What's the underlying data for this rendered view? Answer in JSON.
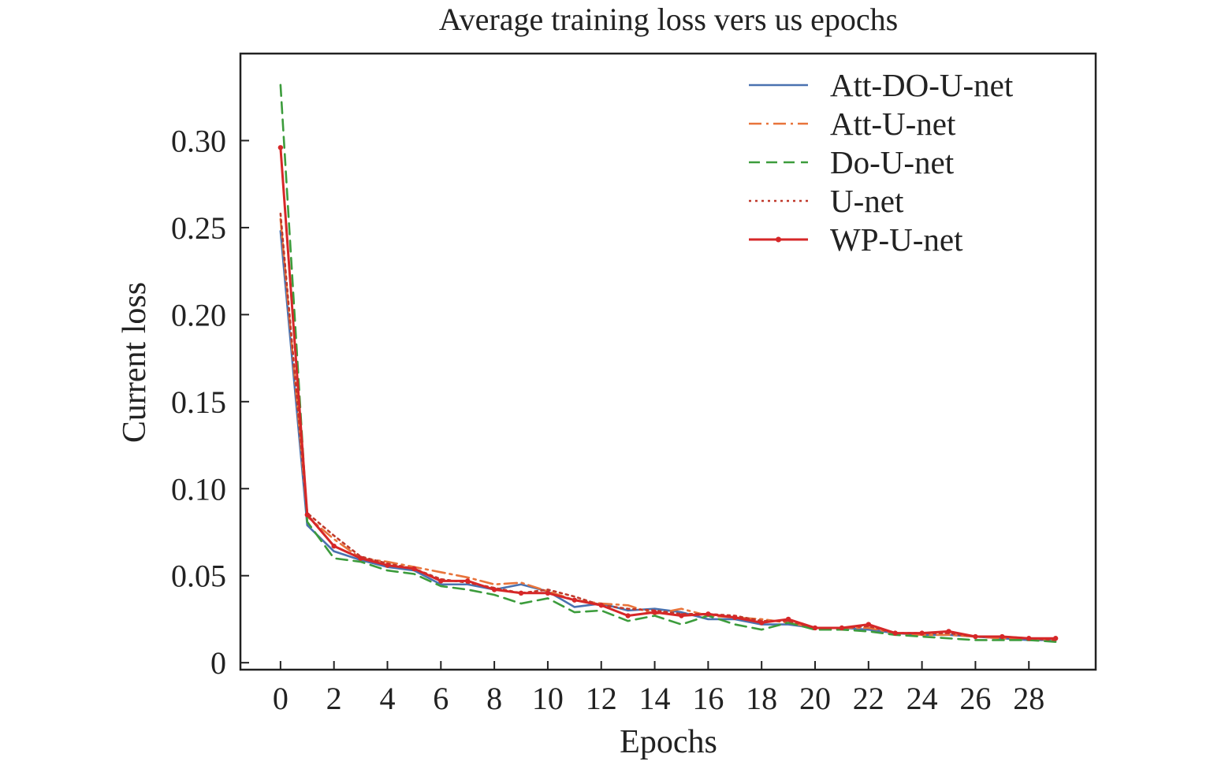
{
  "chart_data": {
    "type": "line",
    "title": "Average training loss vers us epochs",
    "xlabel": "Epochs",
    "ylabel": "Current loss",
    "xlim": [
      -1.5,
      30.5
    ],
    "ylim": [
      -0.004,
      0.35
    ],
    "x_ticks": [
      0,
      2,
      4,
      6,
      8,
      10,
      12,
      14,
      16,
      18,
      20,
      22,
      24,
      26,
      28
    ],
    "x_tick_labels": [
      "0",
      "2",
      "4",
      "6",
      "8",
      "10",
      "12",
      "14",
      "16",
      "18",
      "20",
      "22",
      "24",
      "26",
      "28"
    ],
    "y_ticks": [
      0,
      0.05,
      0.1,
      0.15,
      0.2,
      0.25,
      0.3
    ],
    "y_tick_labels": [
      "0",
      "0.05",
      "0.10",
      "0.15",
      "0.20",
      "0.25",
      "0.30"
    ],
    "grid": false,
    "legend_position": "top-right",
    "x": [
      0,
      1,
      2,
      3,
      4,
      5,
      6,
      7,
      8,
      9,
      10,
      11,
      12,
      13,
      14,
      15,
      16,
      17,
      18,
      19,
      20,
      21,
      22,
      23,
      24,
      25,
      26,
      27,
      28,
      29
    ],
    "series": [
      {
        "name": "Att-DO-U-net",
        "color": "#4a72b0",
        "style": "solid",
        "values": [
          0.248,
          0.079,
          0.064,
          0.059,
          0.055,
          0.053,
          0.045,
          0.045,
          0.042,
          0.045,
          0.041,
          0.032,
          0.034,
          0.03,
          0.031,
          0.029,
          0.025,
          0.025,
          0.022,
          0.022,
          0.02,
          0.02,
          0.019,
          0.017,
          0.016,
          0.016,
          0.015,
          0.014,
          0.013,
          0.013
        ]
      },
      {
        "name": "Att-U-net",
        "color": "#e8743b",
        "style": "dashdot",
        "values": [
          0.255,
          0.084,
          0.071,
          0.06,
          0.058,
          0.055,
          0.052,
          0.049,
          0.045,
          0.046,
          0.041,
          0.036,
          0.034,
          0.033,
          0.028,
          0.031,
          0.027,
          0.026,
          0.025,
          0.023,
          0.02,
          0.02,
          0.02,
          0.017,
          0.016,
          0.016,
          0.015,
          0.014,
          0.014,
          0.013
        ]
      },
      {
        "name": "Do-U-net",
        "color": "#3c9c3c",
        "style": "dashed",
        "values": [
          0.332,
          0.081,
          0.06,
          0.058,
          0.053,
          0.051,
          0.044,
          0.042,
          0.039,
          0.034,
          0.037,
          0.029,
          0.03,
          0.024,
          0.027,
          0.022,
          0.027,
          0.022,
          0.019,
          0.023,
          0.019,
          0.019,
          0.018,
          0.016,
          0.015,
          0.014,
          0.013,
          0.013,
          0.013,
          0.012
        ]
      },
      {
        "name": "U-net",
        "color": "#c0392b",
        "style": "dotted",
        "values": [
          0.258,
          0.086,
          0.073,
          0.061,
          0.057,
          0.054,
          0.048,
          0.046,
          0.043,
          0.04,
          0.042,
          0.038,
          0.033,
          0.031,
          0.03,
          0.028,
          0.028,
          0.027,
          0.024,
          0.024,
          0.02,
          0.02,
          0.021,
          0.017,
          0.017,
          0.017,
          0.015,
          0.015,
          0.014,
          0.013
        ]
      },
      {
        "name": "WP-U-net",
        "color": "#d62728",
        "style": "solid-marker",
        "values": [
          0.296,
          0.085,
          0.067,
          0.06,
          0.056,
          0.054,
          0.047,
          0.047,
          0.042,
          0.04,
          0.04,
          0.036,
          0.033,
          0.027,
          0.029,
          0.027,
          0.028,
          0.026,
          0.023,
          0.025,
          0.02,
          0.02,
          0.022,
          0.017,
          0.017,
          0.018,
          0.015,
          0.015,
          0.014,
          0.014
        ]
      }
    ]
  }
}
